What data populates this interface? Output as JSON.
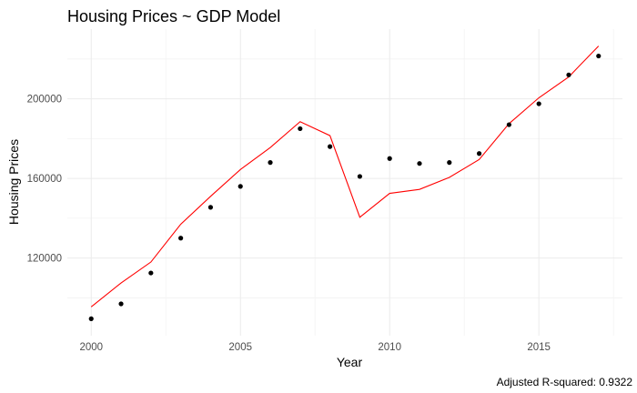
{
  "chart_data": {
    "type": "scatter",
    "title": "Housing Prices ~ GDP Model",
    "xlabel": "Year",
    "ylabel": "Housing Prices",
    "caption": "Adjusted R-squared:  0.9322",
    "xlim": [
      1999.2,
      2017.8
    ],
    "ylim": [
      81000,
      235000
    ],
    "x_ticks": [
      2000,
      2005,
      2010,
      2015
    ],
    "x_tick_labels": [
      "2000",
      "2005",
      "2010",
      "2015"
    ],
    "x_minor": [
      2002.5,
      2007.5,
      2012.5,
      2017.5
    ],
    "y_ticks": [
      120000,
      160000,
      200000
    ],
    "y_tick_labels": [
      "120000",
      "160000",
      "200000"
    ],
    "y_minor": [
      100000,
      140000,
      180000,
      220000
    ],
    "grid": true,
    "series": [
      {
        "kind": "points",
        "color": "#000000",
        "x": [
          2000,
          2001,
          2002,
          2003,
          2004,
          2005,
          2006,
          2007,
          2008,
          2009,
          2010,
          2011,
          2012,
          2013,
          2014,
          2015,
          2016,
          2017
        ],
        "y": [
          89500,
          97000,
          112500,
          130000,
          145500,
          156000,
          168000,
          185000,
          176000,
          161000,
          170000,
          167500,
          168000,
          172500,
          187000,
          197500,
          212000,
          221500
        ]
      },
      {
        "kind": "line",
        "color": "#ff0000",
        "x": [
          2000,
          2001,
          2002,
          2003,
          2004,
          2005,
          2006,
          2007,
          2008,
          2009,
          2010,
          2011,
          2012,
          2013,
          2014,
          2015,
          2016,
          2017
        ],
        "y": [
          95500,
          107500,
          118000,
          137000,
          151000,
          164500,
          175500,
          188500,
          181500,
          140500,
          152500,
          154500,
          160500,
          169500,
          187500,
          200500,
          211000,
          226500
        ]
      }
    ]
  }
}
